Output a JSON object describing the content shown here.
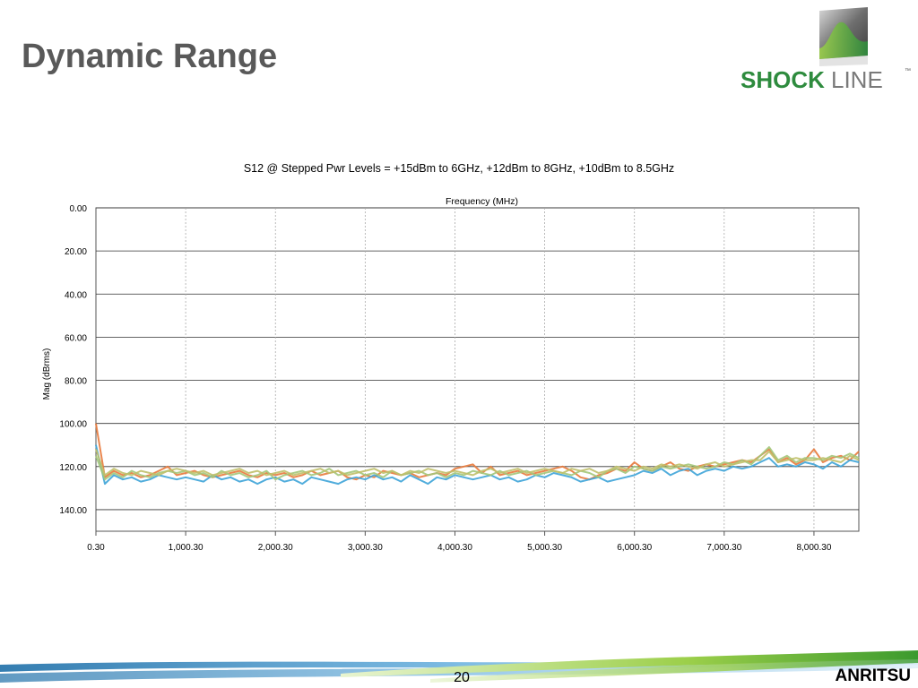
{
  "slide": {
    "title": "Dynamic Range",
    "page_number": "20",
    "brand": "ANRITSU",
    "logo_text": "SHOCKLINE",
    "logo_tm": "™"
  },
  "colors": {
    "logo_green": "#2e8b3e",
    "logo_gray": "#7a7a7a",
    "series": [
      "#e87a3c",
      "#3ea4d8",
      "#a3c77a",
      "#c0c06a"
    ]
  },
  "chart_data": {
    "type": "line",
    "title": "S12 @ Stepped Pwr Levels = +15dBm to 6GHz,  +12dBm to 8GHz,  +10dBm to 8.5GHz",
    "xlabel": "Frequency (MHz)",
    "ylabel": "Mag (dBrms)",
    "xlim": [
      0.3,
      8500.3
    ],
    "ylim": [
      0,
      150
    ],
    "y_inverted": true,
    "x_ticks": [
      0.3,
      1000.3,
      2000.3,
      3000.3,
      4000.3,
      5000.3,
      6000.3,
      7000.3,
      8000.3
    ],
    "x_tick_labels": [
      "0.30",
      "1,000.30",
      "2,000.30",
      "3,000.30",
      "4,000.30",
      "5,000.30",
      "6,000.30",
      "7,000.30",
      "8,000.30"
    ],
    "y_ticks": [
      0,
      20,
      40,
      60,
      80,
      100,
      120,
      140
    ],
    "y_tick_labels": [
      "0.00",
      "20.00",
      "40.00",
      "60.00",
      "80.00",
      "100.00",
      "120.00",
      "140.00"
    ],
    "grid": true,
    "x": [
      0.3,
      100.3,
      200.3,
      300.3,
      400.3,
      500.3,
      600.3,
      700.3,
      800.3,
      900.3,
      1000.3,
      1100.3,
      1200.3,
      1300.3,
      1400.3,
      1500.3,
      1600.3,
      1700.3,
      1800.3,
      1900.3,
      2000.3,
      2100.3,
      2200.3,
      2300.3,
      2400.3,
      2500.3,
      2600.3,
      2700.3,
      2800.3,
      2900.3,
      3000.3,
      3100.3,
      3200.3,
      3300.3,
      3400.3,
      3500.3,
      3600.3,
      3700.3,
      3800.3,
      3900.3,
      4000.3,
      4100.3,
      4200.3,
      4300.3,
      4400.3,
      4500.3,
      4600.3,
      4700.3,
      4800.3,
      4900.3,
      5000.3,
      5100.3,
      5200.3,
      5300.3,
      5400.3,
      5500.3,
      5600.3,
      5700.3,
      5800.3,
      5900.3,
      6000.3,
      6100.3,
      6200.3,
      6300.3,
      6400.3,
      6500.3,
      6600.3,
      6700.3,
      6800.3,
      6900.3,
      7000.3,
      7100.3,
      7200.3,
      7300.3,
      7400.3,
      7500.3,
      7600.3,
      7700.3,
      7800.3,
      7900.3,
      8000.3,
      8100.3,
      8200.3,
      8300.3,
      8400.3,
      8500.3
    ],
    "series": [
      {
        "values": [
          100,
          125,
          122,
          124,
          123,
          125,
          124,
          122,
          120,
          124,
          123,
          122,
          124,
          125,
          124,
          123,
          122,
          124,
          125,
          123,
          124,
          123,
          125,
          124,
          122,
          124,
          123,
          122,
          125,
          126,
          124,
          125,
          122,
          123,
          124,
          123,
          125,
          124,
          123,
          124,
          121,
          120,
          119,
          123,
          120,
          124,
          123,
          122,
          124,
          123,
          122,
          121,
          120,
          122,
          125,
          126,
          124,
          123,
          121,
          122,
          118,
          121,
          122,
          120,
          118,
          121,
          122,
          120,
          119,
          120,
          119,
          118,
          117,
          118,
          115,
          112,
          118,
          116,
          119,
          117,
          112,
          118,
          116,
          115,
          117,
          113
        ]
      },
      {
        "values": [
          110,
          128,
          124,
          126,
          125,
          127,
          126,
          124,
          125,
          126,
          125,
          126,
          127,
          124,
          126,
          125,
          127,
          126,
          128,
          126,
          125,
          127,
          126,
          128,
          125,
          126,
          127,
          128,
          126,
          125,
          126,
          124,
          126,
          125,
          127,
          124,
          126,
          128,
          125,
          126,
          124,
          125,
          126,
          125,
          124,
          126,
          125,
          127,
          126,
          124,
          125,
          123,
          124,
          125,
          127,
          126,
          125,
          127,
          126,
          125,
          124,
          122,
          123,
          121,
          124,
          122,
          121,
          124,
          122,
          121,
          122,
          120,
          121,
          120,
          118,
          116,
          120,
          119,
          120,
          118,
          119,
          121,
          118,
          120,
          117,
          118
        ]
      },
      {
        "values": [
          115,
          126,
          123,
          125,
          122,
          124,
          125,
          123,
          122,
          123,
          122,
          124,
          123,
          125,
          122,
          124,
          123,
          125,
          124,
          122,
          126,
          124,
          123,
          122,
          124,
          123,
          121,
          124,
          123,
          122,
          124,
          123,
          125,
          122,
          124,
          123,
          122,
          124,
          123,
          125,
          123,
          124,
          122,
          123,
          124,
          122,
          124,
          123,
          122,
          124,
          123,
          122,
          123,
          124,
          122,
          123,
          125,
          122,
          121,
          123,
          120,
          121,
          122,
          120,
          121,
          120,
          119,
          120,
          121,
          120,
          118,
          119,
          117,
          119,
          115,
          111,
          117,
          115,
          118,
          116,
          116,
          117,
          115,
          116,
          114,
          116
        ]
      },
      {
        "values": [
          112,
          124,
          121,
          123,
          124,
          122,
          123,
          124,
          122,
          121,
          122,
          123,
          122,
          124,
          123,
          122,
          121,
          123,
          122,
          124,
          123,
          122,
          124,
          123,
          122,
          121,
          123,
          122,
          124,
          123,
          122,
          121,
          123,
          122,
          124,
          122,
          123,
          121,
          122,
          123,
          122,
          123,
          124,
          122,
          121,
          123,
          122,
          121,
          123,
          122,
          121,
          122,
          123,
          121,
          122,
          121,
          123,
          122,
          120,
          121,
          122,
          120,
          121,
          119,
          120,
          119,
          120,
          121,
          119,
          118,
          120,
          119,
          118,
          117,
          117,
          113,
          118,
          117,
          116,
          117,
          117,
          116,
          117,
          118,
          115,
          117
        ]
      }
    ]
  }
}
